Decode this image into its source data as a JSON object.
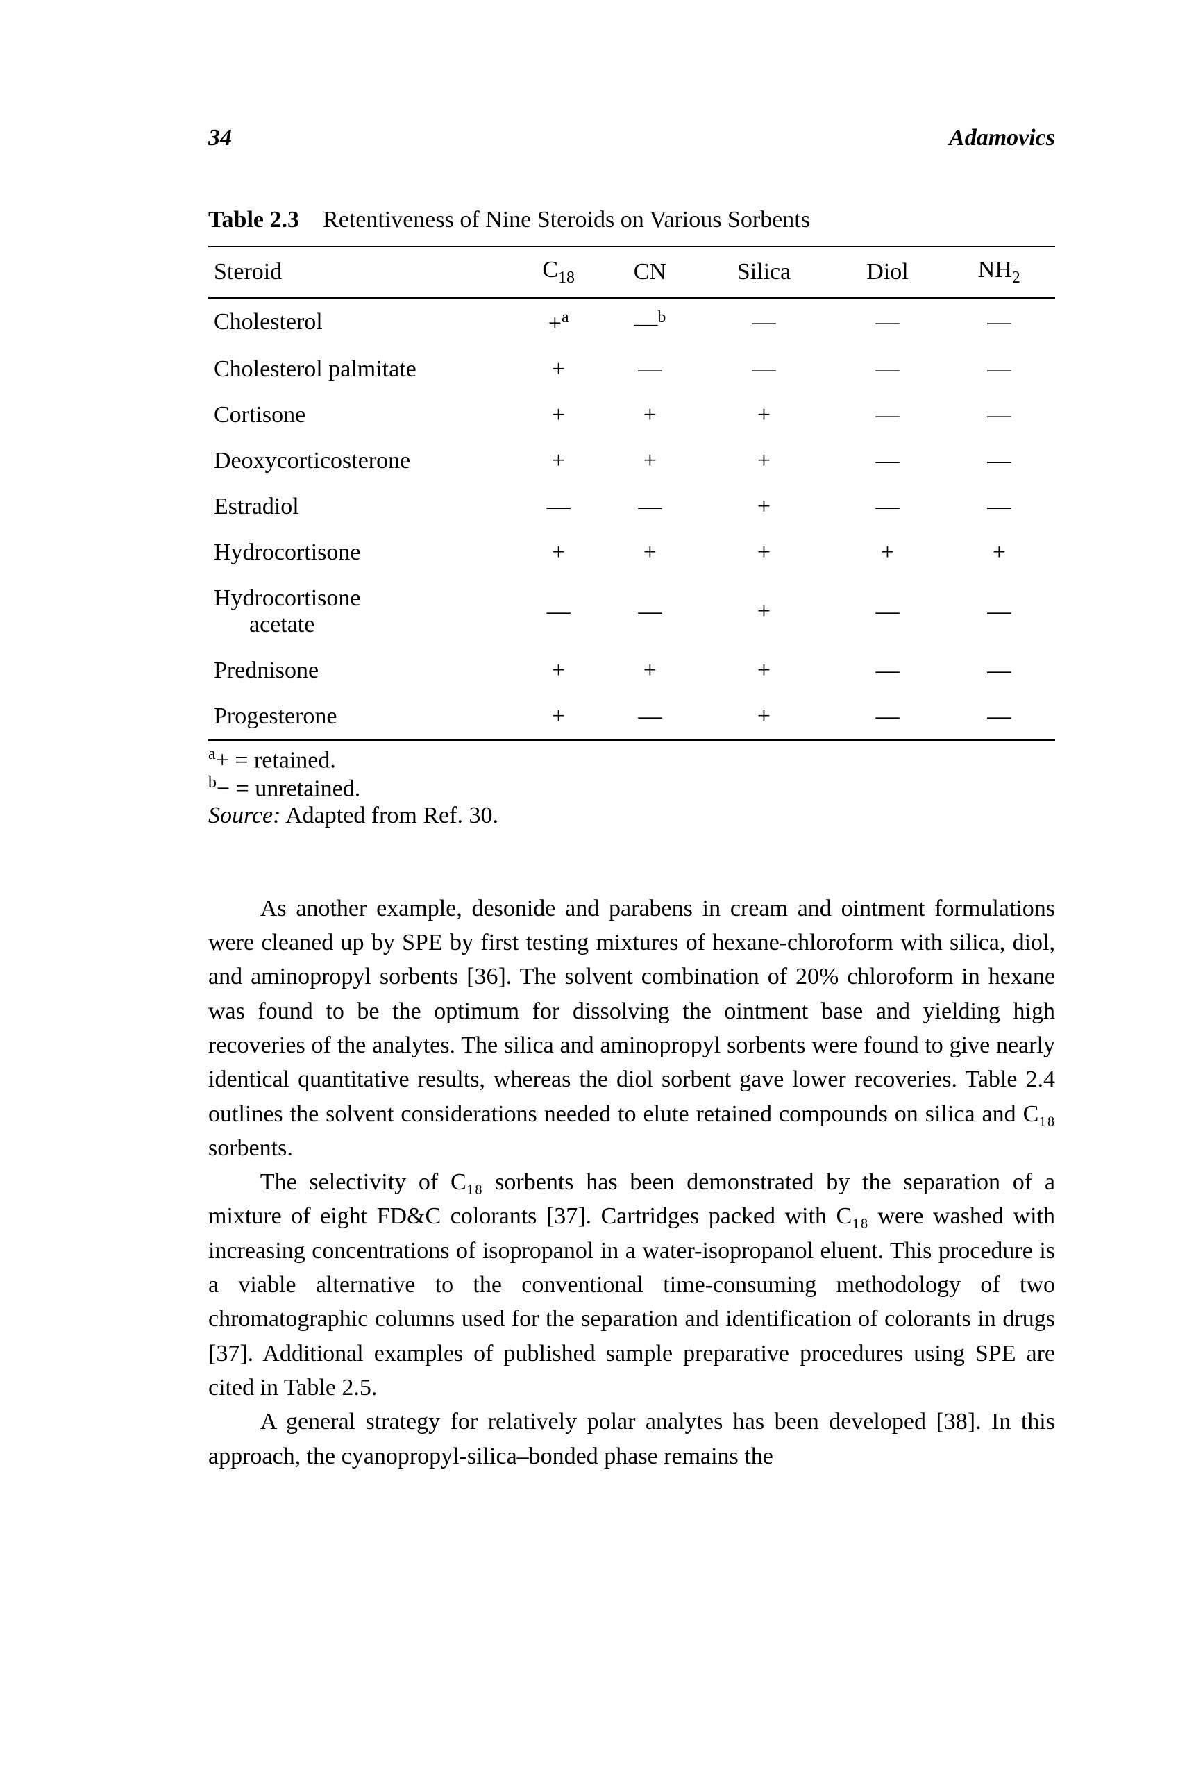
{
  "header": {
    "page_number": "34",
    "running_head": "Adamovics"
  },
  "table": {
    "label": "Table 2.3",
    "title": "Retentiveness of Nine Steroids on Various Sorbents",
    "columns": [
      "Steroid",
      "C18",
      "CN",
      "Silica",
      "Diol",
      "NH2"
    ],
    "column_sub": [
      "",
      "18",
      "",
      "",
      "",
      "2"
    ],
    "rows": [
      {
        "name": "Cholesterol",
        "c18": "+a",
        "cn": "−b",
        "silica": "—",
        "diol": "—",
        "nh2": "—"
      },
      {
        "name": "Cholesterol palmitate",
        "c18": "+",
        "cn": "—",
        "silica": "—",
        "diol": "—",
        "nh2": "—"
      },
      {
        "name": "Cortisone",
        "c18": "+",
        "cn": "+",
        "silica": "+",
        "diol": "—",
        "nh2": "—"
      },
      {
        "name": "Deoxycorticosterone",
        "c18": "+",
        "cn": "+",
        "silica": "+",
        "diol": "—",
        "nh2": "—"
      },
      {
        "name": "Estradiol",
        "c18": "—",
        "cn": "—",
        "silica": "+",
        "diol": "—",
        "nh2": "—"
      },
      {
        "name": "Hydrocortisone",
        "c18": "+",
        "cn": "+",
        "silica": "+",
        "diol": "+",
        "nh2": "+"
      },
      {
        "name": "Hydrocortisone\n    acetate",
        "c18": "—",
        "cn": "—",
        "silica": "+",
        "diol": "—",
        "nh2": "—"
      },
      {
        "name": "Prednisone",
        "c18": "+",
        "cn": "+",
        "silica": "+",
        "diol": "—",
        "nh2": "—"
      },
      {
        "name": "Progesterone",
        "c18": "+",
        "cn": "—",
        "silica": "+",
        "diol": "—",
        "nh2": "—"
      }
    ],
    "footnote_a_sup": "a",
    "footnote_a": "+  = retained.",
    "footnote_b_sup": "b",
    "footnote_b": "−  = unretained.",
    "source_label": "Source:",
    "source_text": " Adapted from Ref. 30."
  },
  "paragraphs": {
    "p1": "As another example, desonide and parabens in cream and ointment formulations were cleaned up by SPE by first testing mixtures of hexane-chloroform with silica, diol, and aminopropyl sorbents [36]. The solvent combination of 20% chloroform in hexane was found to be the optimum for dissolving the ointment base and yielding high recoveries of the analytes. The silica and aminopropyl sorbents were found to give nearly identical quantitative results, whereas the diol sorbent gave lower recoveries. Table 2.4 outlines the solvent considerations needed to elute retained compounds on silica and C₁₈ sorbents.",
    "p2": "The selectivity of C₁₈ sorbents has been demonstrated by the separation of a mixture of eight FD&C colorants [37]. Cartridges packed with C₁₈ were washed with increasing concentrations of isopropanol in a water-isopropanol eluent. This procedure is a viable alternative to the conventional time-consuming methodology of two chromatographic columns used for the separation and identification of colorants in drugs [37]. Additional examples of published sample preparative procedures using SPE are cited in Table 2.5.",
    "p3": "A general strategy for relatively polar analytes has been developed [38]. In this approach, the cyanopropyl-silica–bonded phase remains the"
  }
}
